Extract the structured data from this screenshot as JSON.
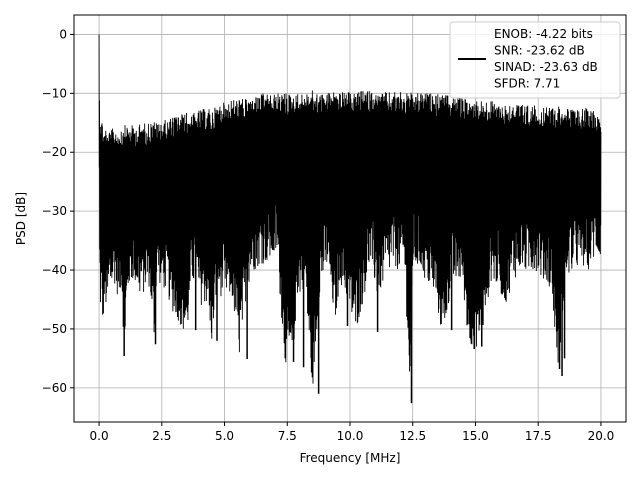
{
  "chart_data": {
    "type": "line",
    "title": "",
    "xlabel": "Frequency [MHz]",
    "ylabel": "PSD [dB]",
    "xlim": [
      -0.999,
      20.999
    ],
    "ylim": [
      -65.8,
      3.3
    ],
    "xticks": [
      0.0,
      2.5,
      5.0,
      7.5,
      10.0,
      12.5,
      15.0,
      17.5,
      20.0
    ],
    "xtick_labels": [
      "0.0",
      "2.5",
      "5.0",
      "7.5",
      "10.0",
      "12.5",
      "15.0",
      "17.5",
      "20.0"
    ],
    "yticks": [
      0,
      -10,
      -20,
      -30,
      -40,
      -50,
      -60
    ],
    "ytick_labels": [
      "0",
      "−10",
      "−20",
      "−30",
      "−40",
      "−50",
      "−60"
    ],
    "grid": true,
    "legend_position": "upper right",
    "legend_lines": [
      "ENOB: -4.22 bits",
      "SNR: -23.62 dB",
      "SINAD: -23.63 dB",
      "SFDR: 7.71"
    ],
    "series": [
      {
        "color": "#000000",
        "x": [
          0.0,
          0.02,
          0.05,
          0.1,
          0.15,
          0.2,
          0.25,
          0.3,
          0.35,
          0.4,
          0.45,
          0.5,
          0.6,
          0.7,
          0.8,
          0.9,
          1.0,
          1.2,
          1.4,
          1.6,
          1.8,
          2.0,
          2.2,
          2.3,
          2.5,
          2.7,
          2.9,
          3.2,
          3.5,
          3.7,
          4.0,
          4.3,
          4.5,
          4.7,
          5.0,
          5.3,
          5.6,
          5.9,
          6.2,
          6.5,
          6.8,
          7.1,
          7.4,
          7.7,
          7.9,
          8.2,
          8.5,
          8.8,
          9.1,
          9.4,
          9.6,
          9.9,
          10.2,
          10.5,
          10.8,
          11.1,
          11.4,
          11.7,
          12.0,
          12.2,
          12.4,
          12.5,
          12.6,
          12.8,
          13.1,
          13.4,
          13.7,
          14.0,
          14.3,
          14.5,
          14.7,
          15.0,
          15.3,
          15.6,
          15.9,
          16.2,
          16.5,
          16.8,
          17.1,
          17.4,
          17.7,
          18.0,
          18.3,
          18.6,
          18.9,
          19.2,
          19.5,
          19.8,
          20.0
        ],
        "upper": [
          0,
          -12,
          -13,
          -14,
          -15,
          -16,
          -15.5,
          -16,
          -17,
          -16.5,
          -16,
          -16.2,
          -15.5,
          -16,
          -15.8,
          -15.5,
          -15.4,
          -15.3,
          -15.5,
          -15.2,
          -15.0,
          -14.8,
          -14.6,
          -15.0,
          -14.5,
          -14.5,
          -14.0,
          -13.5,
          -13.2,
          -13.5,
          -12.8,
          -12.5,
          -12.8,
          -12.0,
          -11.5,
          -11.0,
          -10.8,
          -11.0,
          -10.5,
          -10.0,
          -10.2,
          -10.0,
          -9.8,
          -10.2,
          -10.0,
          -10.0,
          -9.5,
          -10.0,
          -9.8,
          -9.5,
          -9.8,
          -9.8,
          -10.0,
          -9.5,
          -9.5,
          -10.0,
          -9.8,
          -9.8,
          -9.5,
          -10.0,
          -9.8,
          -10.0,
          -10.2,
          -9.8,
          -10.0,
          -10.0,
          -10.2,
          -10.5,
          -10.5,
          -10.8,
          -11.0,
          -11.0,
          -11.2,
          -11.2,
          -11.5,
          -11.8,
          -11.5,
          -11.8,
          -12.0,
          -12.0,
          -12.5,
          -12.2,
          -12.0,
          -12.5,
          -12.8,
          -12.5,
          -12.5,
          -12.8,
          -13.0
        ],
        "lower": [
          -20,
          -42,
          -47,
          -48,
          -50,
          -47,
          -46,
          -48,
          -47,
          -45,
          -45,
          -44,
          -42,
          -44,
          -45,
          -43,
          -54.5,
          -43,
          -42,
          -45,
          -44,
          -43,
          -52.5,
          -42,
          -43,
          -44,
          -47,
          -49,
          -52,
          -42,
          -46,
          -46,
          -53,
          -44,
          -45,
          -45,
          -55,
          -43,
          -40,
          -39,
          -39,
          -38,
          -55.7,
          -56.5,
          -45,
          -43,
          -61,
          -44,
          -40,
          -49.5,
          -42,
          -46,
          -51,
          -46,
          -39,
          -45,
          -42,
          -40,
          -40,
          -42,
          -62.5,
          -40,
          -40,
          -40,
          -43,
          -45,
          -52,
          -44,
          -42,
          -43,
          -52,
          -53.5,
          -51,
          -42,
          -43,
          -46,
          -42,
          -40,
          -41,
          -40,
          -42,
          -43,
          -57,
          -42,
          -40,
          -40,
          -40,
          -38,
          -38
        ],
        "dips": [
          [
            1.0,
            -54.6
          ],
          [
            2.25,
            -52.6
          ],
          [
            3.85,
            -50.2
          ],
          [
            4.7,
            -52.0
          ],
          [
            5.9,
            -55.1
          ],
          [
            7.75,
            -55.6
          ],
          [
            8.15,
            -56.5
          ],
          [
            8.75,
            -61.0
          ],
          [
            9.9,
            -49.5
          ],
          [
            11.1,
            -50.5
          ],
          [
            12.45,
            -62.6
          ],
          [
            14.05,
            -50.2
          ],
          [
            14.95,
            -53.4
          ],
          [
            15.25,
            -53.0
          ],
          [
            18.35,
            -56.8
          ],
          [
            18.45,
            -58.0
          ],
          [
            18.55,
            -55.0
          ]
        ]
      }
    ]
  }
}
